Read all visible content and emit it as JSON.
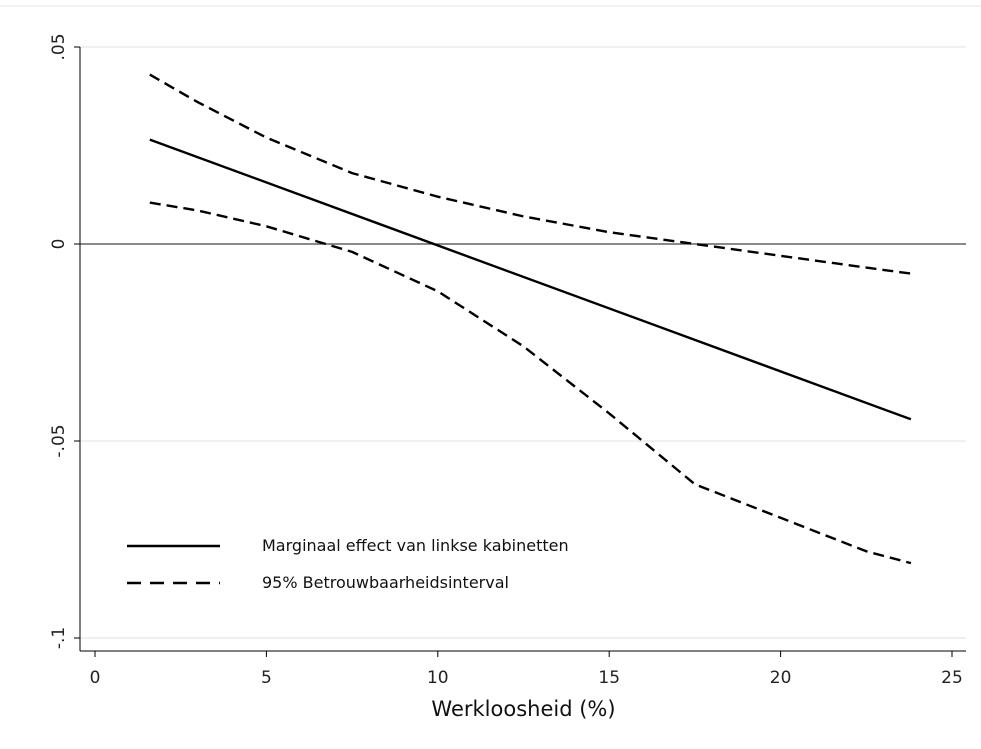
{
  "chart_data": {
    "type": "line",
    "title": "",
    "xlabel": "Werkloosheid (%)",
    "ylabel": "",
    "xlim": [
      0,
      25
    ],
    "ylim": [
      -0.1,
      0.05
    ],
    "x_ticks": [
      0,
      5,
      10,
      15,
      20,
      25
    ],
    "x_tick_labels": [
      "0",
      "5",
      "10",
      "15",
      "20",
      "25"
    ],
    "y_ticks": [
      0.05,
      0,
      -0.05,
      -0.1
    ],
    "y_tick_labels": [
      ".05",
      "0",
      "-.05",
      "-.1"
    ],
    "grid": "horizontal",
    "reference_line": 0,
    "legend_position": "bottom-left",
    "series": [
      {
        "name": "Marginaal effect van linkse kabinetten",
        "style": "solid",
        "x": [
          1.6,
          23.8
        ],
        "y": [
          0.0265,
          -0.0445
        ]
      },
      {
        "name": "95% Betrouwbaarheidsinterval",
        "style": "dashed",
        "x": [
          1.6,
          3,
          5,
          7.5,
          10,
          12.5,
          15,
          17.5,
          20,
          22.5,
          23.8
        ],
        "y": [
          0.043,
          0.036,
          0.027,
          0.018,
          0.012,
          0.007,
          0.003,
          0.0,
          -0.003,
          -0.006,
          -0.0075
        ]
      },
      {
        "name": "",
        "style": "dashed",
        "x": [
          1.6,
          3,
          5,
          7.5,
          10,
          12.5,
          15,
          17.5,
          20,
          22.5,
          23.8
        ],
        "y": [
          0.0105,
          0.0085,
          0.0045,
          -0.002,
          -0.012,
          -0.026,
          -0.043,
          -0.061,
          -0.0695,
          -0.078,
          -0.081
        ]
      }
    ]
  }
}
